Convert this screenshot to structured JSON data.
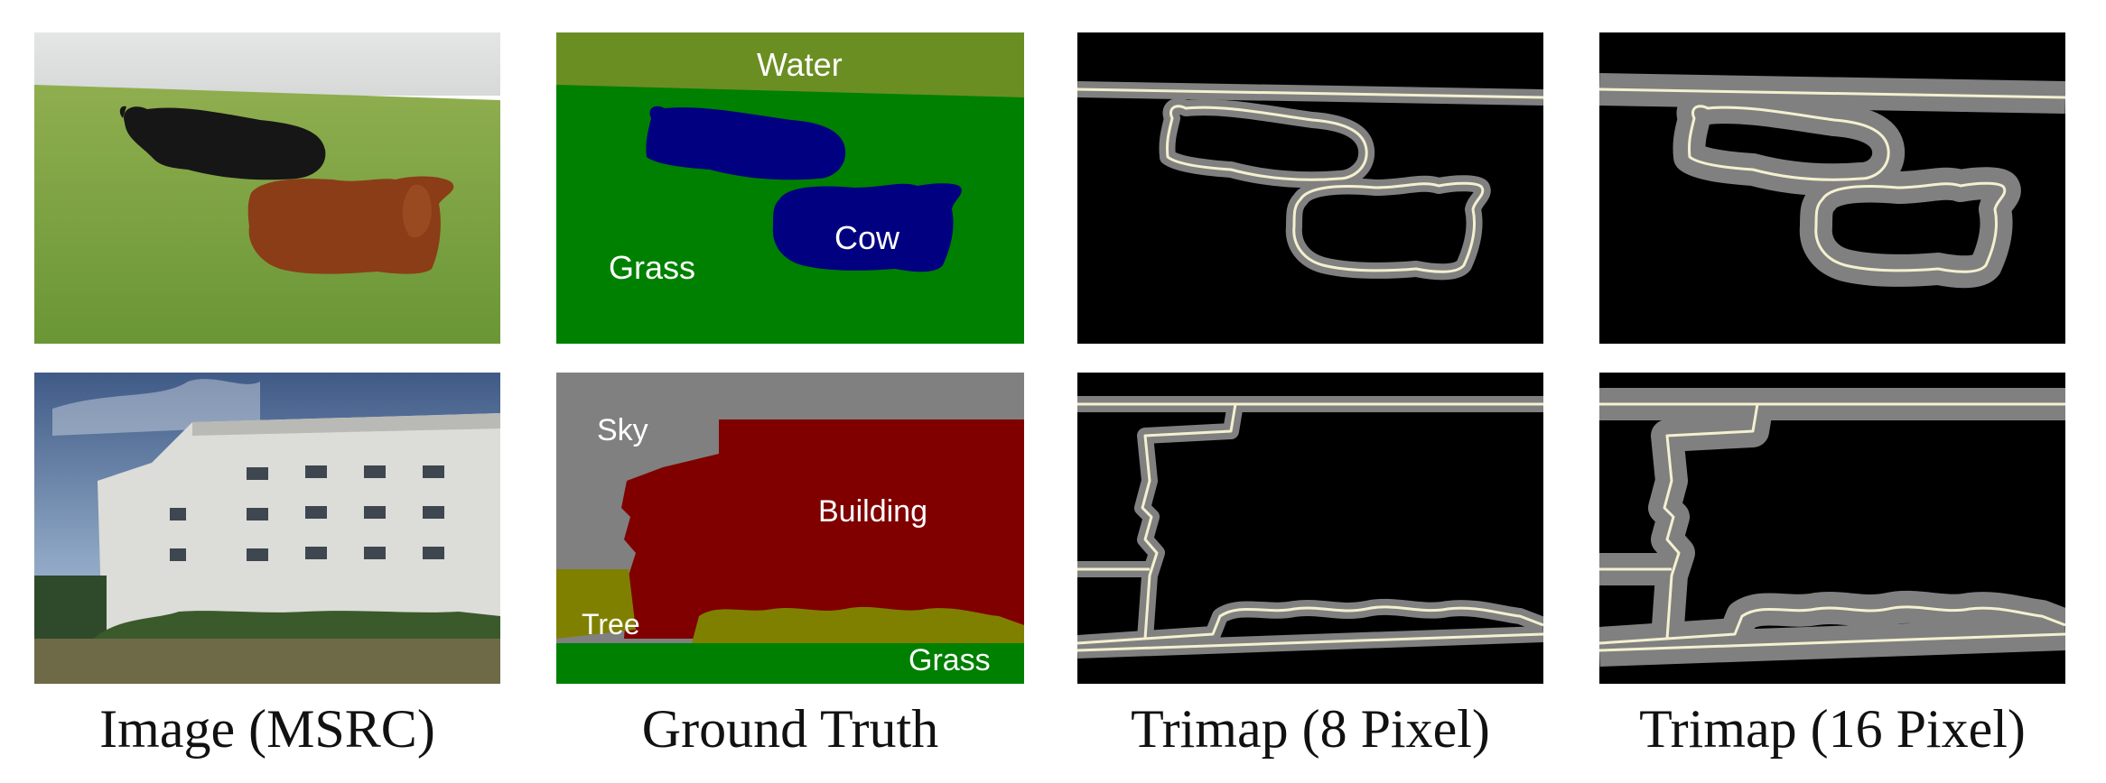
{
  "figure": {
    "columns": [
      "Image (MSRC)",
      "Ground Truth",
      "Trimap (8 Pixel)",
      "Trimap (16 Pixel)"
    ],
    "rows": [
      {
        "scene": "cows on grass",
        "ground_truth_labels": [
          "Water",
          "Cow",
          "Grass"
        ]
      },
      {
        "scene": "building",
        "ground_truth_labels": [
          "Sky",
          "Building",
          "Tree",
          "Grass"
        ]
      }
    ],
    "colors": {
      "water": "#6b8e23",
      "grass": "#008000",
      "cow": "#000080",
      "sky": "#808080",
      "building": "#800000",
      "tree": "#808000",
      "trimap_band": "#808080",
      "trimap_line": "#f4f0d0",
      "trimap_bg": "#000000"
    }
  }
}
